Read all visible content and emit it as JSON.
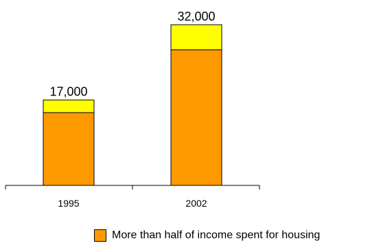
{
  "chart_data": {
    "type": "bar",
    "stacked": true,
    "categories": [
      "1995",
      "2002"
    ],
    "totals_labels": [
      "17,000",
      "32,000"
    ],
    "series": [
      {
        "name": "More than half of income spent for housing",
        "values": [
          14500,
          27000
        ],
        "color": "#ff9900"
      },
      {
        "values": [
          2500,
          5000
        ],
        "color": "#ffff00"
      }
    ],
    "ylim": [
      0,
      32000
    ],
    "grid": false,
    "legend_position": "bottom"
  }
}
